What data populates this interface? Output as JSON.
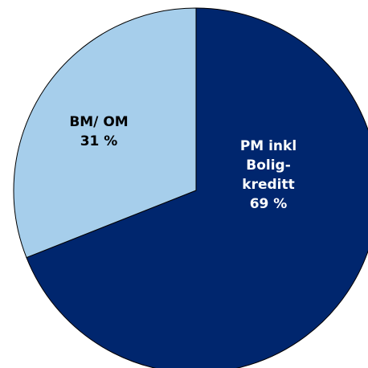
{
  "chart_data": {
    "type": "pie",
    "slices": [
      {
        "label_lines": [
          "PM inkl",
          "Bolig-",
          "kreditt",
          "69 %"
        ],
        "value": 69,
        "color": "#00266E",
        "label_color": "#FFFFFF"
      },
      {
        "label_lines": [
          "BM/ OM",
          "31 %"
        ],
        "value": 31,
        "color": "#A6CEEB",
        "label_color": "#000000"
      }
    ],
    "start_angle_deg": 0,
    "direction": "clockwise",
    "stroke_color": "#000000"
  }
}
